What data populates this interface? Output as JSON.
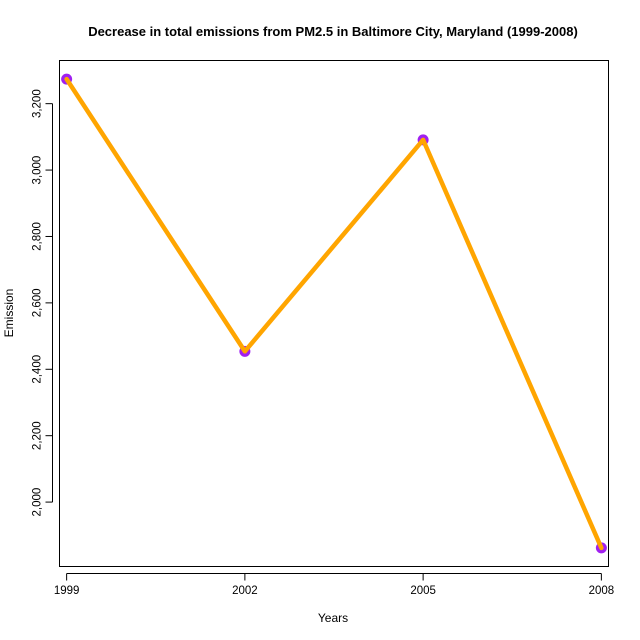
{
  "chart_data": {
    "type": "line",
    "title": "Decrease in total emissions from PM2.5 in Baltimore City, Maryland (1999-2008)",
    "xlabel": "Years",
    "ylabel": "Emission",
    "x": [
      1999,
      2002,
      2005,
      2008
    ],
    "x_tick_labels": [
      "1999",
      "2002",
      "2005",
      "2008"
    ],
    "y_ticks": [
      2000,
      2200,
      2400,
      2600,
      2800,
      3000,
      3200
    ],
    "y_tick_labels": [
      "2,000",
      "2,200",
      "2,400",
      "2,600",
      "2,800",
      "3,000",
      "3,200"
    ],
    "series": [
      {
        "values": [
          3274,
          2454,
          3091,
          1862
        ],
        "line_color": "#FFA500",
        "marker_color": "#A020F0"
      }
    ],
    "xlim": [
      1998.88,
      2008.12
    ],
    "ylim": [
      1806,
      3330
    ],
    "grid": false,
    "legend": "none"
  }
}
